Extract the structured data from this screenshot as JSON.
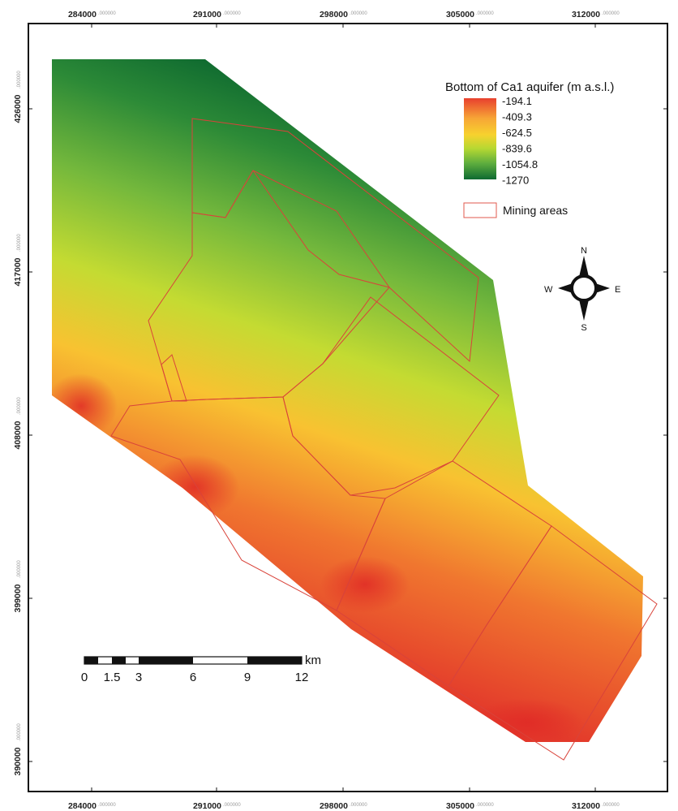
{
  "axes": {
    "x_ticks": [
      {
        "value": "284000",
        "sub": ".000000"
      },
      {
        "value": "291000",
        "sub": ".000000"
      },
      {
        "value": "298000",
        "sub": ".000000"
      },
      {
        "value": "305000",
        "sub": ".000000"
      },
      {
        "value": "312000",
        "sub": ".000000"
      }
    ],
    "y_ticks": [
      {
        "value": "426000",
        "sub": ".000000"
      },
      {
        "value": "417000",
        "sub": ".000000"
      },
      {
        "value": "408000",
        "sub": ".000000"
      },
      {
        "value": "399000",
        "sub": ".000000"
      },
      {
        "value": "390000",
        "sub": ".000000"
      }
    ]
  },
  "legend": {
    "title": "Bottom of Ca1 aquifer (m a.s.l.)",
    "ramp_labels": [
      "-194.1",
      "-409.3",
      "-624.5",
      "-839.6",
      "-1054.8",
      "-1270"
    ],
    "ramp_colors": [
      "#e8402e",
      "#f7a636",
      "#f7d22e",
      "#b6d832",
      "#5fae3e",
      "#0e6a32"
    ],
    "mining_label": "Mining areas",
    "mining_color": "#e05a4e"
  },
  "compass": {
    "n": "N",
    "s": "S",
    "e": "E",
    "w": "W"
  },
  "scale_bar": {
    "labels": [
      "0",
      "1.5",
      "3",
      "6",
      "9",
      "12"
    ],
    "unit": "km"
  }
}
